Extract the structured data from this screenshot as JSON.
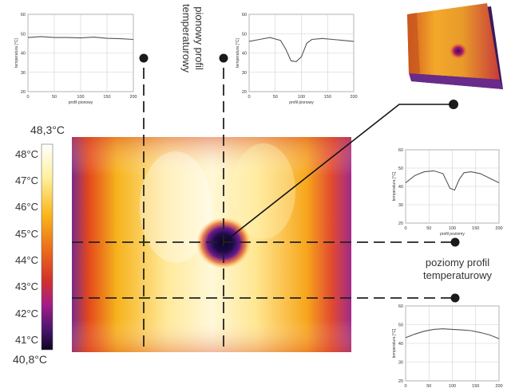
{
  "colorbar": {
    "max_label": "48,3°C",
    "min_label": "40,8°C",
    "ticks": [
      "48°C",
      "47°C",
      "46°C",
      "45°C",
      "44°C",
      "43°C",
      "42°C",
      "41°C"
    ]
  },
  "labels": {
    "vertical_profile": [
      "pionowy profil",
      "temperaturowy"
    ],
    "horizontal_profile": [
      "poziomy profil",
      "temperaturowy"
    ]
  },
  "colors": {
    "hot": "#fff8c8",
    "warm": "#f7b21c",
    "mid": "#e0451b",
    "cool": "#a61c88",
    "cold": "#14082e",
    "line": "#222222"
  },
  "chart_data": [
    {
      "name": "top-left",
      "type": "line",
      "ylabel": "temperatura [°C]",
      "xlabel": "profil pionowy",
      "xlim": [
        0,
        200
      ],
      "ylim": [
        20,
        60
      ],
      "xticks": [
        "0",
        "50",
        "100",
        "150",
        "200"
      ],
      "yticks": [
        "60",
        "50",
        "40",
        "30",
        "20"
      ],
      "x": [
        0,
        25,
        50,
        75,
        100,
        125,
        150,
        175,
        200
      ],
      "y": [
        48,
        48.5,
        48,
        48,
        47.8,
        48.2,
        47.6,
        47.4,
        47
      ]
    },
    {
      "name": "top-right",
      "type": "line",
      "ylabel": "temperatura [°C]",
      "xlabel": "profil pionowy",
      "xlim": [
        0,
        200
      ],
      "ylim": [
        20,
        60
      ],
      "xticks": [
        "0",
        "50",
        "100",
        "150",
        "200"
      ],
      "yticks": [
        "60",
        "50",
        "40",
        "30",
        "20"
      ],
      "x": [
        0,
        20,
        40,
        60,
        70,
        80,
        90,
        100,
        110,
        120,
        140,
        160,
        180,
        200
      ],
      "y": [
        46,
        47,
        48,
        46.5,
        42,
        36,
        35.5,
        38,
        45,
        47,
        47.5,
        47,
        46.5,
        46
      ]
    },
    {
      "name": "right-upper",
      "type": "line",
      "ylabel": "temperatura [°C]",
      "xlabel": "profil poziomy",
      "xlim": [
        0,
        200
      ],
      "ylim": [
        20,
        60
      ],
      "xticks": [
        "0",
        "50",
        "100",
        "150",
        "200"
      ],
      "yticks": [
        "60",
        "50",
        "40",
        "30",
        "20"
      ],
      "x": [
        0,
        20,
        40,
        60,
        80,
        95,
        105,
        115,
        125,
        140,
        160,
        180,
        200
      ],
      "y": [
        42,
        46,
        48,
        48.5,
        47,
        39,
        38,
        44,
        47.5,
        48,
        47,
        44.5,
        42
      ]
    },
    {
      "name": "right-lower",
      "type": "line",
      "ylabel": "temperatura [°C]",
      "xlabel": "profil poziomy",
      "xlim": [
        0,
        200
      ],
      "ylim": [
        20,
        60
      ],
      "xticks": [
        "0",
        "50",
        "100",
        "150",
        "200"
      ],
      "yticks": [
        "60",
        "50",
        "40",
        "30",
        "20"
      ],
      "x": [
        0,
        20,
        40,
        60,
        80,
        100,
        120,
        140,
        160,
        180,
        200
      ],
      "y": [
        43,
        45,
        46.5,
        47.5,
        47.8,
        47.5,
        47.2,
        46.8,
        45.8,
        44.5,
        42.5
      ]
    }
  ]
}
